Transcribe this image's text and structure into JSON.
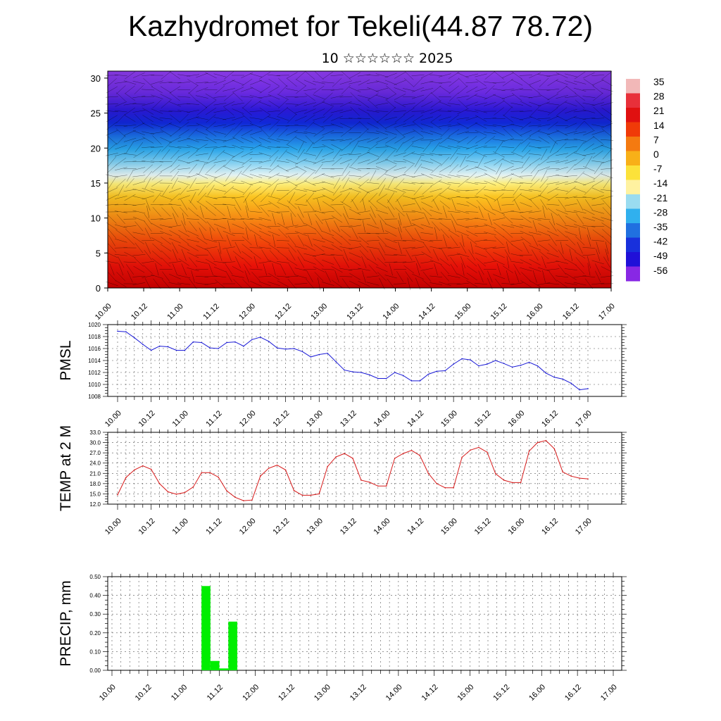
{
  "title": "Kazhydromet for Tekeli(44.87 78.72)",
  "subtitle": "10 ☆☆☆☆☆☆ 2025",
  "colors": {
    "pmsl_line": "#1a1ad6",
    "temp_line": "#d61a1a",
    "precip_bar": "#00ee00"
  },
  "chart_data": [
    {
      "type": "heatmap",
      "id": "upper-air",
      "ylim": [
        0,
        31
      ],
      "y_ticks": [
        "0",
        "5",
        "10",
        "15",
        "20",
        "25",
        "30"
      ],
      "x_ticks": [
        "10.00",
        "10.12",
        "11.00",
        "11.12",
        "12.00",
        "12.12",
        "13.00",
        "13.12",
        "14.00",
        "14.12",
        "15.00",
        "15.12",
        "16.00",
        "16.12",
        "17.00"
      ],
      "colorbar_labels": [
        "35",
        "28",
        "21",
        "14",
        "7",
        "0",
        "-7",
        "-14",
        "-21",
        "-28",
        "-35",
        "-42",
        "-49",
        "-56"
      ],
      "colorbar_colors": [
        "#f2b8b8",
        "#e8303a",
        "#e01010",
        "#f03a08",
        "#f47a10",
        "#f8b018",
        "#fce23a",
        "#fff2a0",
        "#9adcf0",
        "#30b0ee",
        "#2070e0",
        "#1830dc",
        "#2010d8",
        "#8828e4"
      ],
      "grid": false
    },
    {
      "type": "line",
      "id": "pmsl",
      "ylabel": "PMSL",
      "ylim": [
        1008,
        1020
      ],
      "y_ticks": [
        "1008",
        "1010",
        "1012",
        "1014",
        "1016",
        "1018",
        "1020"
      ],
      "x_ticks": [
        "10.00",
        "10.12",
        "11.00",
        "11.12",
        "12.00",
        "12.12",
        "13.00",
        "13.12",
        "14.00",
        "14.12",
        "15.00",
        "15.12",
        "16.00",
        "16.12",
        "17.00"
      ],
      "x": [
        0,
        0.125,
        0.25,
        0.375,
        0.5,
        0.625,
        0.75,
        0.875,
        1,
        1.125,
        1.25,
        1.375,
        1.5,
        1.625,
        1.75,
        1.875,
        2,
        2.125,
        2.25,
        2.375,
        2.5,
        2.625,
        2.75,
        2.875,
        3,
        3.125,
        3.25,
        3.375,
        3.5,
        3.625,
        3.75,
        3.875,
        4,
        4.125,
        4.25,
        4.375,
        4.5,
        4.625,
        4.75,
        4.875,
        5,
        5.125,
        5.25,
        5.375,
        5.5,
        5.625,
        5.75,
        5.875,
        6,
        6.125,
        6.25,
        6.375,
        6.5,
        6.625,
        6.75,
        6.875,
        7
      ],
      "values": [
        1018.9,
        1018.8,
        1017.8,
        1016.7,
        1015.7,
        1016.4,
        1016.3,
        1015.7,
        1015.7,
        1017.1,
        1017.0,
        1016.1,
        1016.0,
        1017.0,
        1017.1,
        1016.4,
        1017.5,
        1017.9,
        1017.2,
        1016.1,
        1015.9,
        1016.0,
        1015.5,
        1014.6,
        1015.0,
        1015.2,
        1013.8,
        1012.4,
        1012.1,
        1012.0,
        1011.6,
        1011.0,
        1011.0,
        1012.0,
        1011.5,
        1010.6,
        1010.6,
        1011.7,
        1012.2,
        1012.3,
        1013.4,
        1014.3,
        1014.1,
        1013.1,
        1013.4,
        1014.0,
        1013.5,
        1012.9,
        1013.2,
        1013.7,
        1013.1,
        1011.9,
        1011.2,
        1010.9,
        1010.2,
        1009.1,
        1009.3
      ]
    },
    {
      "type": "line",
      "id": "temp",
      "ylabel": "TEMP at 2 M",
      "ylim": [
        12.0,
        33.0
      ],
      "y_ticks": [
        "12.0",
        "15.0",
        "18.0",
        "21.0",
        "24.0",
        "27.0",
        "30.0",
        "33.0"
      ],
      "x_ticks": [
        "10.00",
        "10.12",
        "11.00",
        "11.12",
        "12.00",
        "12.12",
        "13.00",
        "13.12",
        "14.00",
        "14.12",
        "15.00",
        "15.12",
        "16.00",
        "16.12",
        "17.00"
      ],
      "x": [
        0,
        0.125,
        0.25,
        0.375,
        0.5,
        0.625,
        0.75,
        0.875,
        1,
        1.125,
        1.25,
        1.375,
        1.5,
        1.625,
        1.75,
        1.875,
        2,
        2.125,
        2.25,
        2.375,
        2.5,
        2.625,
        2.75,
        2.875,
        3,
        3.125,
        3.25,
        3.375,
        3.5,
        3.625,
        3.75,
        3.875,
        4,
        4.125,
        4.25,
        4.375,
        4.5,
        4.625,
        4.75,
        4.875,
        5,
        5.125,
        5.25,
        5.375,
        5.5,
        5.625,
        5.75,
        5.875,
        6,
        6.125,
        6.25,
        6.375,
        6.5,
        6.625,
        6.75,
        6.875,
        7
      ],
      "values": [
        14.7,
        19.8,
        22.0,
        23.2,
        22.2,
        18.0,
        15.6,
        14.9,
        15.4,
        17.0,
        21.2,
        21.2,
        19.9,
        15.9,
        14.0,
        13.0,
        13.2,
        20.2,
        22.5,
        23.4,
        22.0,
        16.0,
        14.6,
        14.6,
        15.0,
        23.0,
        25.8,
        26.8,
        25.4,
        19.0,
        18.4,
        17.3,
        17.3,
        25.4,
        26.8,
        27.7,
        26.2,
        21.0,
        18.0,
        16.8,
        16.8,
        25.7,
        27.8,
        28.6,
        27.2,
        20.9,
        19.0,
        18.3,
        18.3,
        27.5,
        30.0,
        30.6,
        28.2,
        21.4,
        20.2,
        19.6,
        19.4
      ]
    },
    {
      "type": "bar",
      "id": "precip",
      "ylabel": "PRECIP, mm",
      "ylim": [
        0,
        0.5
      ],
      "y_ticks": [
        "0.00",
        "0.10",
        "0.20",
        "0.30",
        "0.40",
        "0.50"
      ],
      "x_ticks": [
        "10.00",
        "10.12",
        "11.00",
        "11.12",
        "12.00",
        "12.12",
        "13.00",
        "13.12",
        "14.00",
        "14.12",
        "15.00",
        "15.12",
        "16.00",
        "16.12",
        "17.00"
      ],
      "x": [
        1.25,
        1.375,
        1.5,
        1.625
      ],
      "values": [
        0.45,
        0.05,
        0.01,
        0.26
      ]
    }
  ]
}
